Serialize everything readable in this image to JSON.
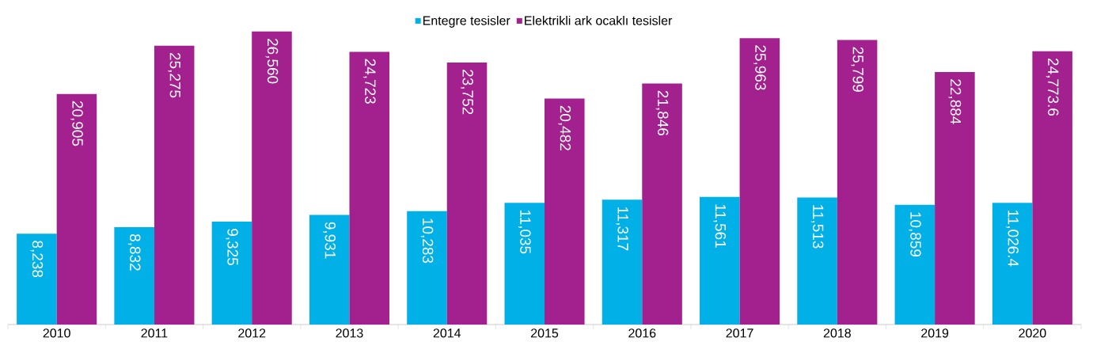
{
  "chart_data": {
    "type": "bar",
    "categories": [
      "2010",
      "2011",
      "2012",
      "2013",
      "2014",
      "2015",
      "2016",
      "2017",
      "2018",
      "2019",
      "2020"
    ],
    "series": [
      {
        "name": "Entegre tesisler",
        "color": "#00b0e6",
        "values": [
          8238,
          8832,
          9325,
          9931,
          10283,
          11035,
          11317,
          11561,
          11513,
          10859,
          11026.4
        ],
        "value_labels": [
          "8,238",
          "8,832",
          "9,325",
          "9,931",
          "10,283",
          "11,035",
          "11,317",
          "11,561",
          "11,513",
          "10,859",
          "11,026.4"
        ]
      },
      {
        "name": "Elektrikli ark ocaklı tesisler",
        "color": "#a3218e",
        "values": [
          20905,
          25275,
          26560,
          24723,
          23752,
          20482,
          21846,
          25963,
          25799,
          22884,
          24773.6
        ],
        "value_labels": [
          "20,905",
          "25,275",
          "26,560",
          "24,723",
          "23,752",
          "20,482",
          "21,846",
          "25,963",
          "25,799",
          "22,884",
          "24,773.6"
        ]
      }
    ],
    "legend": "top"
  }
}
